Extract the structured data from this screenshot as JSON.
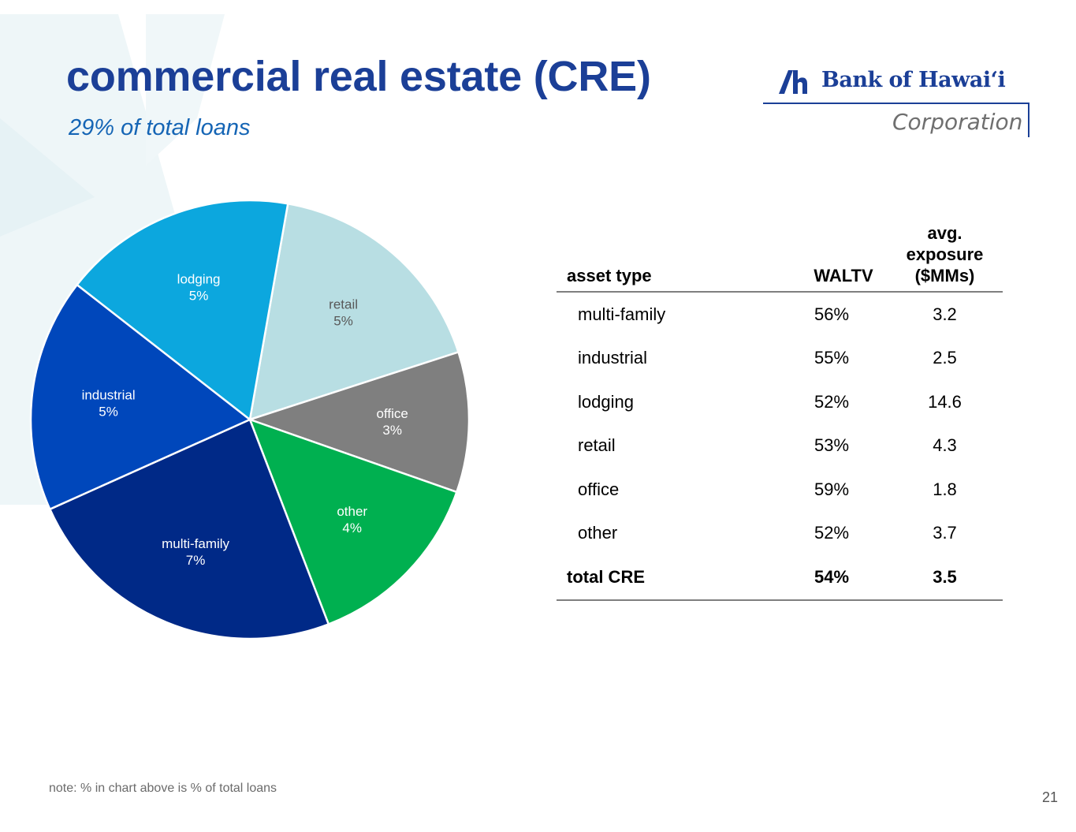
{
  "slide": {
    "title": "commercial real estate (CRE)",
    "subtitle": "29% of total loans",
    "note": "note: % in chart above is % of total loans",
    "page_number": "21"
  },
  "logo": {
    "name": "Bank of Hawaiʻi",
    "sub": "Corporation",
    "color": "#1b3f97"
  },
  "chart_data": {
    "type": "pie",
    "unit": "% of total loans",
    "slices": [
      {
        "label": "retail",
        "value": 5,
        "display": "5%",
        "color": "#b8dee3",
        "text_color": "#595959"
      },
      {
        "label": "office",
        "value": 3,
        "display": "3%",
        "color": "#7f7f7f",
        "text_color": "#ffffff"
      },
      {
        "label": "other",
        "value": 4,
        "display": "4%",
        "color": "#00b050",
        "text_color": "#ffffff"
      },
      {
        "label": "multi-family",
        "value": 7,
        "display": "7%",
        "color": "#002987",
        "text_color": "#ffffff"
      },
      {
        "label": "industrial",
        "value": 5,
        "display": "5%",
        "color": "#0047bb",
        "text_color": "#ffffff"
      },
      {
        "label": "lodging",
        "value": 5,
        "display": "5%",
        "color": "#0ca7de",
        "text_color": "#ffffff"
      }
    ]
  },
  "table": {
    "headers": {
      "asset_type": "asset type",
      "waltv": "WALTV",
      "exposure_line1": "avg.",
      "exposure_line2": "exposure",
      "exposure_line3": "($MMs)"
    },
    "rows": [
      {
        "asset_type": "multi-family",
        "waltv": "56%",
        "exposure": "3.2"
      },
      {
        "asset_type": "industrial",
        "waltv": "55%",
        "exposure": "2.5"
      },
      {
        "asset_type": "lodging",
        "waltv": "52%",
        "exposure": "14.6"
      },
      {
        "asset_type": "retail",
        "waltv": "53%",
        "exposure": "4.3"
      },
      {
        "asset_type": "office",
        "waltv": "59%",
        "exposure": "1.8"
      },
      {
        "asset_type": "other",
        "waltv": "52%",
        "exposure": "3.7"
      }
    ],
    "total": {
      "asset_type": "total CRE",
      "waltv": "54%",
      "exposure": "3.5"
    }
  }
}
